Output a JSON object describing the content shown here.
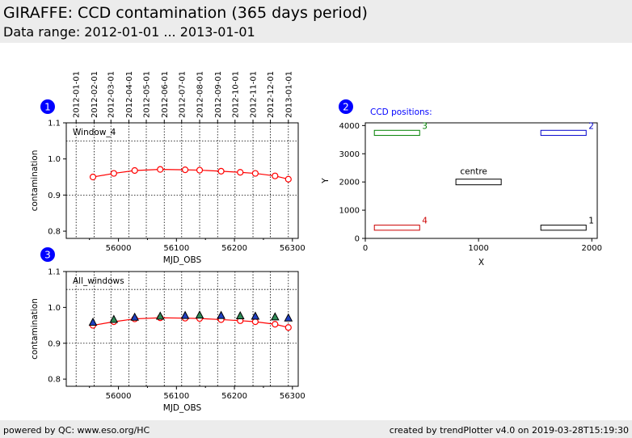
{
  "header": {
    "title": "GIRAFFE: CCD contamination (365 days period)",
    "subtitle": "Data range: 2012-01-01 ... 2013-01-01"
  },
  "footer": {
    "left": "powered by QC: www.eso.org/HC",
    "right": "created by trendPlotter v4.0 on 2019-03-28T15:19:30"
  },
  "colors": {
    "badge": "#0000ff",
    "series_line": "#ff0000",
    "ccd_blue": "#0000cc",
    "ccd_green": "#008000",
    "ccd_red": "#cc0000",
    "ccd_black": "#000000",
    "caption": "#0000ff",
    "marker_blue": "#1f3fbf",
    "marker_green": "#2e8b57"
  },
  "chart_data": [
    {
      "type": "line",
      "panel": "1",
      "box_label": "Window_4",
      "xlabel": "MJD_OBS",
      "ylabel": "contamination",
      "xlim": [
        55910,
        56310
      ],
      "ylim": [
        0.78,
        1.1
      ],
      "xticks": [
        56000,
        56100,
        56200,
        56300
      ],
      "yticks": [
        0.8,
        0.9,
        1.0,
        1.1
      ],
      "ytick_labels": [
        "0.8",
        "0.9",
        "1.0",
        "1.1"
      ],
      "hlines": [
        1.05,
        0.9
      ],
      "top_dates": [
        "2012-01-01",
        "2012-02-01",
        "2012-03-01",
        "2012-04-01",
        "2012-05-01",
        "2012-06-01",
        "2012-07-01",
        "2012-08-01",
        "2012-09-01",
        "2012-10-01",
        "2012-11-01",
        "2012-12-01",
        "2013-01-01"
      ],
      "top_dates_mjd": [
        55927,
        55958,
        55987,
        56018,
        56048,
        56079,
        56109,
        56140,
        56171,
        56201,
        56232,
        56262,
        56293
      ],
      "series": [
        {
          "x": [
            55956,
            55992,
            56028,
            56072,
            56115,
            56140,
            56177,
            56210,
            56236,
            56270,
            56293
          ],
          "y": [
            0.95,
            0.96,
            0.968,
            0.971,
            0.97,
            0.969,
            0.966,
            0.963,
            0.96,
            0.953,
            0.944
          ]
        }
      ]
    },
    {
      "type": "scatter",
      "panel": "2",
      "caption": "CCD positions:",
      "xlabel": "X",
      "ylabel": "Y",
      "xlim": [
        0,
        2048
      ],
      "ylim": [
        0,
        4096
      ],
      "xticks": [
        0,
        1000,
        2000
      ],
      "yticks": [
        0,
        1000,
        2000,
        3000,
        4000
      ],
      "windows": [
        {
          "label": "1",
          "x0": 1550,
          "x1": 1950,
          "y0": 290,
          "y1": 470,
          "color": "#000000"
        },
        {
          "label": "2",
          "x0": 1550,
          "x1": 1950,
          "y0": 3650,
          "y1": 3830,
          "color": "#0000cc"
        },
        {
          "label": "3",
          "x0": 80,
          "x1": 480,
          "y0": 3650,
          "y1": 3830,
          "color": "#008000"
        },
        {
          "label": "4",
          "x0": 80,
          "x1": 480,
          "y0": 290,
          "y1": 470,
          "color": "#cc0000"
        },
        {
          "label": "centre",
          "x0": 800,
          "x1": 1200,
          "y0": 1900,
          "y1": 2100,
          "color": "#000000"
        }
      ]
    },
    {
      "type": "line",
      "panel": "3",
      "box_label": "All_windows",
      "xlabel": "MJD_OBS",
      "ylabel": "contamination",
      "xlim": [
        55910,
        56310
      ],
      "ylim": [
        0.78,
        1.1
      ],
      "xticks": [
        56000,
        56100,
        56200,
        56300
      ],
      "yticks": [
        0.8,
        0.9,
        1.0,
        1.1
      ],
      "ytick_labels": [
        "0.8",
        "0.9",
        "1.0",
        "1.1"
      ],
      "hlines": [
        1.05,
        0.9
      ],
      "vlines_mjd": [
        55927,
        55958,
        55987,
        56018,
        56048,
        56079,
        56109,
        56140,
        56171,
        56201,
        56232,
        56262,
        56293
      ],
      "series": [
        {
          "marker": "circle",
          "x": [
            55956,
            55992,
            56028,
            56072,
            56115,
            56140,
            56177,
            56210,
            56236,
            56270,
            56293
          ],
          "y": [
            0.95,
            0.96,
            0.968,
            0.971,
            0.97,
            0.969,
            0.966,
            0.963,
            0.96,
            0.953,
            0.944
          ]
        },
        {
          "marker": "triangle",
          "x": [
            55956,
            55992,
            56028,
            56072,
            56115,
            56140,
            56177,
            56210,
            56236,
            56270,
            56293
          ],
          "y": [
            0.958,
            0.966,
            0.972,
            0.975,
            0.977,
            0.978,
            0.977,
            0.976,
            0.975,
            0.973,
            0.97
          ]
        }
      ]
    }
  ]
}
